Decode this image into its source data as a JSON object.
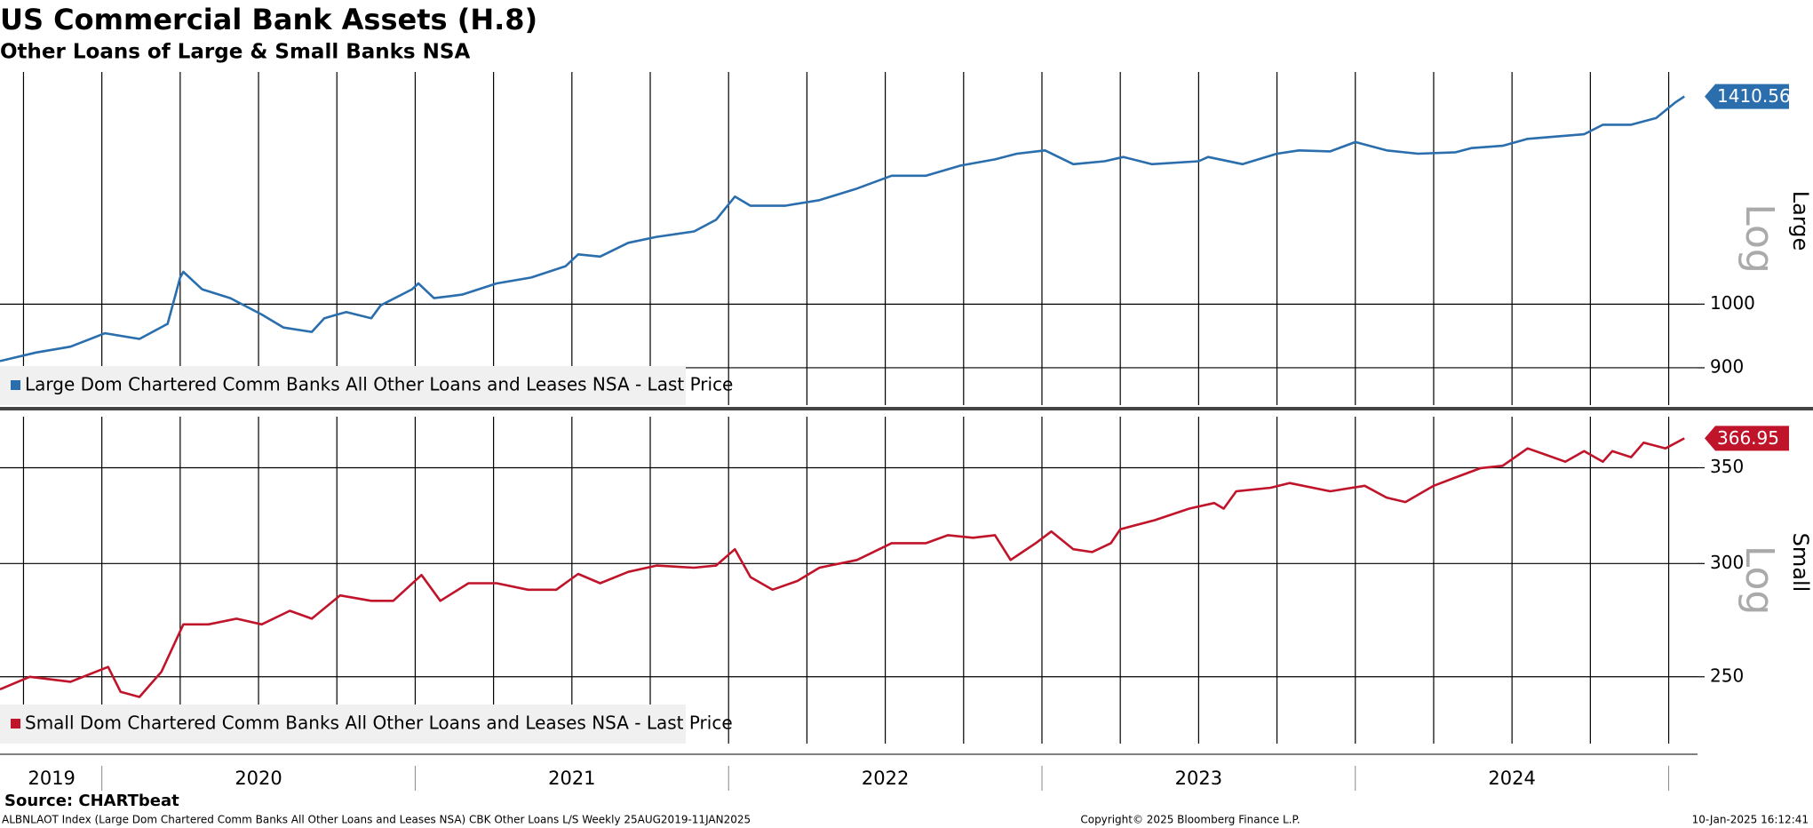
{
  "title": "US Commercial Bank Assets (H.8)",
  "subtitle": "Other Loans of Large & Small Banks NSA",
  "source": "Source: CHARTbeat",
  "footer": {
    "left": "ALBNLAOT Index (Large Dom Chartered Comm Banks All Other Loans and Leases NSA) CBK Other Loans L/S  Weekly 25AUG2019-11JAN2025",
    "center": "Copyright© 2025 Bloomberg Finance L.P.",
    "right": "10-Jan-2025 16:12:41"
  },
  "x_axis": {
    "xlim": [
      2019.675,
      2025.092
    ],
    "xticks": [
      {
        "value": 2019.84,
        "label": "2019"
      },
      {
        "value": 2020.5,
        "label": "2020"
      },
      {
        "value": 2021.5,
        "label": "2021"
      },
      {
        "value": 2022.5,
        "label": "2022"
      },
      {
        "value": 2023.5,
        "label": "2023"
      },
      {
        "value": 2024.5,
        "label": "2024"
      }
    ],
    "grid": [
      2019.75,
      2020,
      2020.25,
      2020.5,
      2020.75,
      2021,
      2021.25,
      2021.5,
      2021.75,
      2022,
      2022.25,
      2022.5,
      2022.75,
      2023,
      2023.25,
      2023.5,
      2023.75,
      2024,
      2024.25,
      2024.5,
      2024.75,
      2025
    ]
  },
  "chart_data": [
    {
      "type": "line",
      "panel_label": "Large",
      "scale_label": "Log",
      "log": true,
      "ylim": [
        846,
        1469
      ],
      "yticks": [
        900,
        1000
      ],
      "xlim": [
        2019.675,
        2025.092
      ],
      "x": [
        2019.675,
        2019.79,
        2019.9,
        2020.01,
        2020.12,
        2020.21,
        2020.25,
        2020.26,
        2020.32,
        2020.41,
        2020.51,
        2020.58,
        2020.67,
        2020.71,
        2020.78,
        2020.86,
        2020.89,
        2020.99,
        2021.01,
        2021.06,
        2021.15,
        2021.26,
        2021.37,
        2021.48,
        2021.52,
        2021.59,
        2021.68,
        2021.77,
        2021.89,
        2021.96,
        2022.02,
        2022.07,
        2022.18,
        2022.29,
        2022.41,
        2022.52,
        2022.63,
        2022.74,
        2022.85,
        2022.92,
        2023.01,
        2023.1,
        2023.2,
        2023.26,
        2023.35,
        2023.5,
        2023.53,
        2023.64,
        2023.75,
        2023.82,
        2023.92,
        2024.0,
        2024.1,
        2024.2,
        2024.32,
        2024.37,
        2024.47,
        2024.55,
        2024.64,
        2024.73,
        2024.79,
        2024.88,
        2024.96,
        2025.02,
        2025.05
      ],
      "series": [
        {
          "name": "Large Dom Chartered Comm Banks All Other Loans and Leases NSA - Last Price",
          "color": "#2a6ead",
          "values": [
            910,
            923,
            932,
            953,
            944,
            968,
            1045,
            1055,
            1025,
            1010,
            983,
            962,
            955,
            977,
            987,
            977,
            998,
            1025,
            1035,
            1010,
            1016,
            1035,
            1045,
            1065,
            1086,
            1082,
            1107,
            1118,
            1128,
            1150,
            1195,
            1177,
            1177,
            1188,
            1211,
            1237,
            1237,
            1258,
            1271,
            1283,
            1290,
            1261,
            1267,
            1276,
            1261,
            1267,
            1276,
            1261,
            1283,
            1290,
            1288,
            1308,
            1290,
            1283,
            1286,
            1295,
            1300,
            1315,
            1320,
            1325,
            1346,
            1346,
            1361,
            1396,
            1410.56
          ]
        }
      ]
    },
    {
      "type": "line",
      "panel_label": "Small",
      "scale_label": "Log",
      "log": true,
      "ylim": [
        224.5,
        380
      ],
      "yticks": [
        250,
        300,
        350
      ],
      "xlim": [
        2019.675,
        2025.092
      ],
      "x": [
        2019.675,
        2019.77,
        2019.9,
        2020.02,
        2020.06,
        2020.12,
        2020.19,
        2020.26,
        2020.34,
        2020.43,
        2020.51,
        2020.6,
        2020.67,
        2020.76,
        2020.86,
        2020.93,
        2021.02,
        2021.08,
        2021.17,
        2021.26,
        2021.36,
        2021.45,
        2021.52,
        2021.59,
        2021.68,
        2021.77,
        2021.89,
        2021.96,
        2022.02,
        2022.07,
        2022.14,
        2022.22,
        2022.29,
        2022.41,
        2022.52,
        2022.63,
        2022.7,
        2022.78,
        2022.85,
        2022.9,
        2022.98,
        2023.03,
        2023.1,
        2023.16,
        2023.22,
        2023.25,
        2023.36,
        2023.47,
        2023.55,
        2023.58,
        2023.62,
        2023.73,
        2023.79,
        2023.92,
        2024.03,
        2024.1,
        2024.16,
        2024.25,
        2024.32,
        2024.4,
        2024.47,
        2024.55,
        2024.6,
        2024.67,
        2024.73,
        2024.79,
        2024.82,
        2024.88,
        2024.92,
        2024.99,
        2025.05
      ],
      "series": [
        {
          "name": "Small Dom Chartered Comm Banks All Other Loans and Leases NSA - Last Price",
          "color": "#c0142b",
          "values": [
            245,
            250,
            248,
            254,
            244,
            242,
            252,
            272,
            272,
            274.5,
            272,
            278,
            274.5,
            285,
            282.5,
            282.5,
            294.5,
            282.5,
            290.6,
            290.6,
            287.6,
            287.6,
            295,
            290.6,
            296,
            299,
            298,
            299,
            307,
            293.5,
            287.6,
            291.7,
            298,
            301.7,
            310,
            310,
            314,
            312.7,
            314,
            301.7,
            310,
            315.9,
            307,
            305.6,
            310,
            317,
            321.7,
            327.7,
            330.7,
            327.7,
            337,
            338.9,
            341.5,
            337,
            340,
            333.6,
            331.2,
            340,
            344.6,
            349.8,
            351.1,
            361.1,
            357.9,
            353.4,
            359.5,
            353.4,
            359.5,
            356,
            364.4,
            361.1,
            366.95
          ]
        }
      ]
    }
  ]
}
